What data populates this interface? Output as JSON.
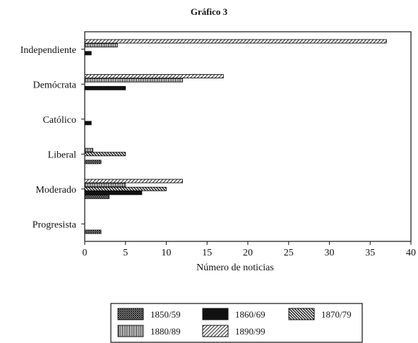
{
  "chart_data": {
    "type": "bar",
    "orientation": "horizontal",
    "title": "Gráfico 3",
    "xlabel": "Número de noticias",
    "ylabel": "",
    "xlim": [
      0,
      40
    ],
    "xticks": [
      0,
      5,
      10,
      15,
      20,
      25,
      30,
      35,
      40
    ],
    "grid": false,
    "legend_position": "bottom",
    "categories": [
      "Independiente",
      "Demócrata",
      "Católico",
      "Liberal",
      "Moderado",
      "Progresista"
    ],
    "series": [
      {
        "name": "1850/59",
        "pattern": "crosshatch-dense",
        "values": [
          0,
          0,
          0,
          2,
          3,
          2
        ]
      },
      {
        "name": "1860/69",
        "pattern": "solid-black",
        "values": [
          0.8,
          5,
          0.8,
          0,
          7,
          0
        ]
      },
      {
        "name": "1870/79",
        "pattern": "diagonal-back",
        "values": [
          0,
          0,
          0,
          5,
          10,
          0
        ]
      },
      {
        "name": "1880/89",
        "pattern": "vertical-lines",
        "values": [
          4,
          12,
          0,
          1,
          5,
          0
        ]
      },
      {
        "name": "1890/99",
        "pattern": "diagonal-fwd",
        "values": [
          37,
          17,
          0,
          0,
          12,
          0
        ]
      }
    ]
  }
}
